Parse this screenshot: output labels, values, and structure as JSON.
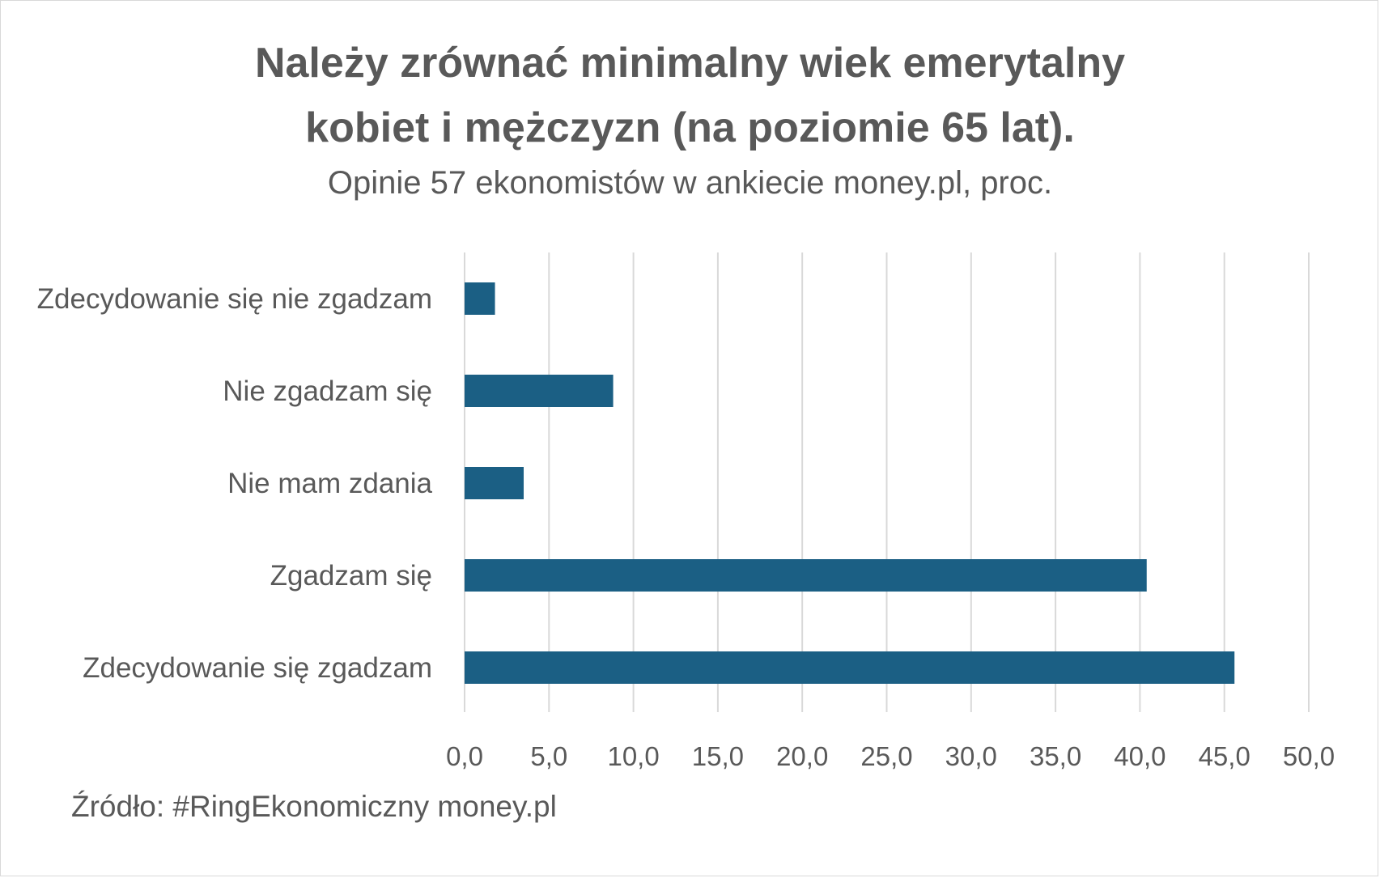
{
  "chart_data": {
    "type": "bar",
    "orientation": "horizontal",
    "title_line1": "Należy zrównać minimalny wiek emerytalny",
    "title_line2": "kobiet i mężczyzn (na poziomie 65 lat).",
    "subtitle": "Opinie 57 ekonomistów w ankiecie money.pl, proc.",
    "categories": [
      "Zdecydowanie się nie zgadzam",
      "Nie zgadzam się",
      "Nie mam zdania",
      "Zgadzam się",
      "Zdecydowanie się zgadzam"
    ],
    "values": [
      1.8,
      8.8,
      3.5,
      40.4,
      45.6
    ],
    "ticks": [
      "0,0",
      "5,0",
      "10,0",
      "15,0",
      "20,0",
      "25,0",
      "30,0",
      "35,0",
      "40,0",
      "45,0",
      "50,0"
    ],
    "xlim": [
      0,
      50
    ],
    "grid": true,
    "bar_color": "#1b5f84",
    "grid_color": "#d9d9d9",
    "text_color": "#595959"
  },
  "source": "Źródło: #RingEkonomiczny money.pl"
}
